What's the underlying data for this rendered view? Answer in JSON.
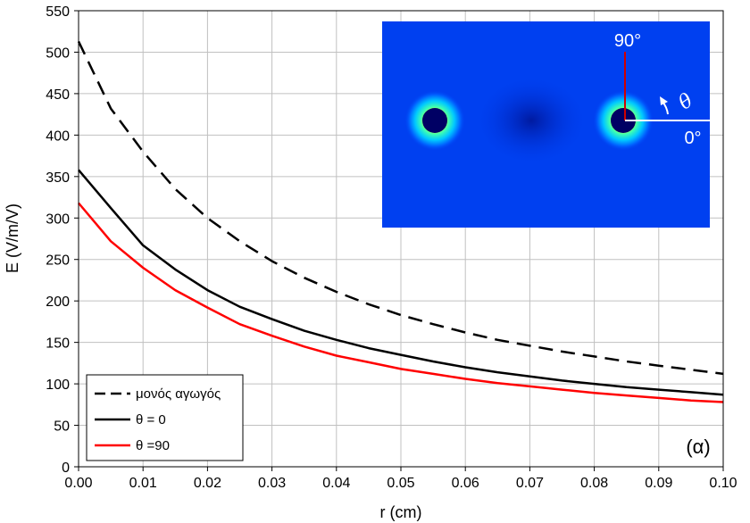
{
  "chart_data": {
    "type": "line",
    "xlabel": "r (cm)",
    "ylabel": "E (V/m/V)",
    "xlim": [
      0,
      0.1
    ],
    "ylim": [
      0,
      550
    ],
    "xticks": [
      "0.00",
      "0.01",
      "0.02",
      "0.03",
      "0.04",
      "0.05",
      "0.06",
      "0.07",
      "0.08",
      "0.09",
      "0.10"
    ],
    "yticks": [
      "0",
      "50",
      "100",
      "150",
      "200",
      "250",
      "300",
      "350",
      "400",
      "450",
      "500",
      "550"
    ],
    "grid": true,
    "legend_position": "bottom-left",
    "panel_label": "(α)",
    "series": [
      {
        "name": "μονός αγωγός",
        "color": "#000000",
        "dashed": true,
        "x": [
          0,
          0.005,
          0.01,
          0.015,
          0.02,
          0.025,
          0.03,
          0.035,
          0.04,
          0.045,
          0.05,
          0.055,
          0.06,
          0.065,
          0.07,
          0.075,
          0.08,
          0.085,
          0.09,
          0.095,
          0.1
        ],
        "y": [
          513,
          432,
          380,
          335,
          300,
          272,
          248,
          228,
          211,
          196,
          183,
          172,
          162,
          153,
          146,
          139,
          133,
          127,
          122,
          117,
          112
        ]
      },
      {
        "name": "θ = 0",
        "color": "#000000",
        "dashed": false,
        "x": [
          0,
          0.005,
          0.01,
          0.015,
          0.02,
          0.025,
          0.03,
          0.035,
          0.04,
          0.045,
          0.05,
          0.055,
          0.06,
          0.065,
          0.07,
          0.075,
          0.08,
          0.085,
          0.09,
          0.095,
          0.1
        ],
        "y": [
          358,
          312,
          267,
          238,
          213,
          193,
          178,
          164,
          153,
          143,
          135,
          127,
          120,
          114,
          109,
          104,
          100,
          96,
          93,
          90,
          87
        ]
      },
      {
        "name": "θ =90",
        "color": "#ff0000",
        "dashed": false,
        "x": [
          0,
          0.005,
          0.01,
          0.015,
          0.02,
          0.025,
          0.03,
          0.035,
          0.04,
          0.045,
          0.05,
          0.055,
          0.06,
          0.065,
          0.07,
          0.075,
          0.08,
          0.085,
          0.09,
          0.095,
          0.1
        ],
        "y": [
          318,
          272,
          240,
          213,
          192,
          172,
          158,
          145,
          134,
          126,
          118,
          112,
          106,
          101,
          97,
          93,
          89,
          86,
          83,
          80,
          78
        ]
      }
    ],
    "inset": {
      "label_90": "90°",
      "label_0": "0°",
      "label_theta": "θ"
    }
  }
}
